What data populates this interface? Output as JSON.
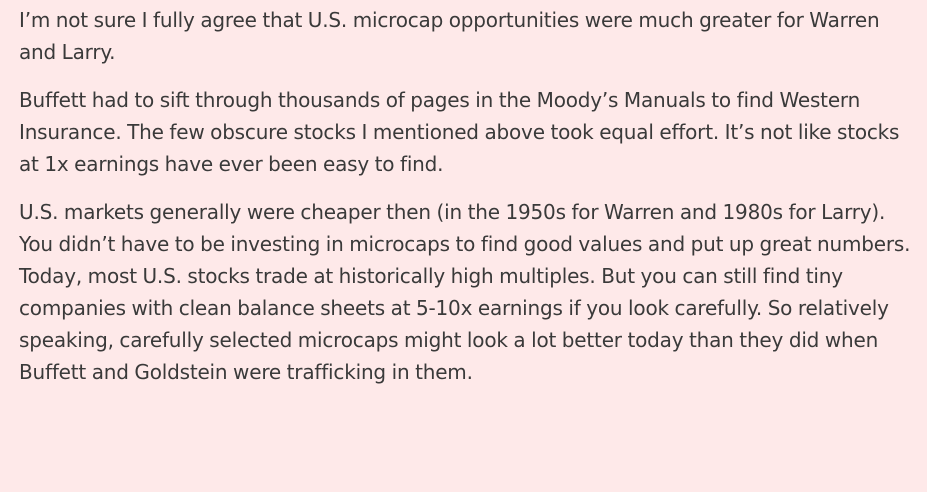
{
  "article": {
    "paragraphs": [
      "I’m not sure I fully agree that U.S. microcap opportunities were much greater for Warren and Larry.",
      "Buffett had to sift through thousands of pages in the Moody’s Manuals to find Western Insurance. The few obscure stocks I mentioned above took equal effort. It’s not like stocks at 1x earnings have ever been easy to find.",
      "U.S. markets generally were cheaper then (in the 1950s for Warren and 1980s for Larry). You didn’t have to be investing in microcaps to find good values and put up great numbers. Today, most U.S. stocks trade at historically high multiples. But you can still find tiny companies with clean balance sheets at 5-10x earnings if you look carefully. So relatively speaking, carefully selected microcaps might look a lot better today than they did when Buffett and Goldstein were trafficking in them."
    ]
  },
  "colors": {
    "background": "#fee9e9",
    "text": "#3a3a3a"
  }
}
